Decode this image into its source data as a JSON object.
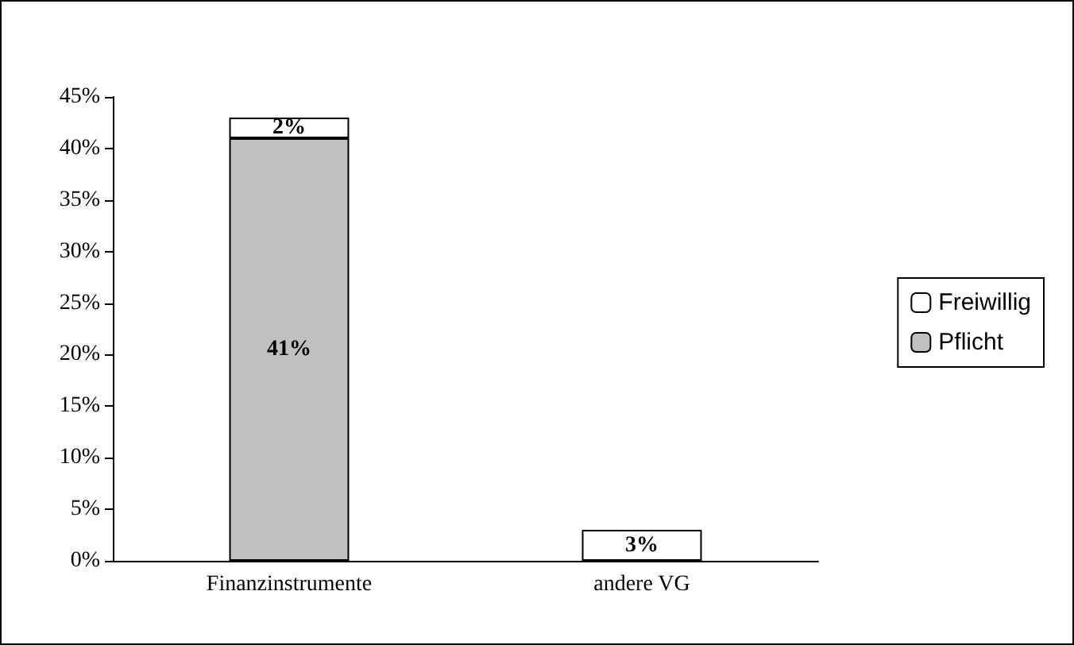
{
  "chart_data": {
    "type": "bar",
    "stacked": true,
    "categories": [
      "Finanzinstrumente",
      "andere VG"
    ],
    "series": [
      {
        "name": "Pflicht",
        "color": "#c0c0c0",
        "values": [
          41,
          0
        ],
        "value_labels": [
          "41%",
          null
        ]
      },
      {
        "name": "Freiwillig",
        "color": "#ffffff",
        "values": [
          2,
          3
        ],
        "value_labels": [
          "2%",
          "3%"
        ]
      }
    ],
    "ylim": [
      0,
      45
    ],
    "yticks": [
      {
        "value": 0,
        "label": "0%"
      },
      {
        "value": 5,
        "label": "5%"
      },
      {
        "value": 10,
        "label": "10%"
      },
      {
        "value": 15,
        "label": "15%"
      },
      {
        "value": 20,
        "label": "20%"
      },
      {
        "value": 25,
        "label": "25%"
      },
      {
        "value": 30,
        "label": "30%"
      },
      {
        "value": 35,
        "label": "35%"
      },
      {
        "value": 40,
        "label": "40%"
      },
      {
        "value": 45,
        "label": "45%"
      }
    ],
    "grid": false,
    "legend": "right"
  }
}
